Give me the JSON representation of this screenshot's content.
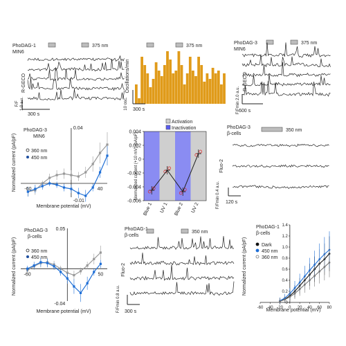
{
  "chart_data": [
    {
      "id": "a1",
      "type": "line",
      "label": "PhoDAG-1",
      "cells": "MIN6",
      "stim": "375 nm",
      "ylabel": "R-GECO",
      "scale_y": "F/Fmin 1.0 a.u.",
      "scale_x": "300 s",
      "traces": 5
    },
    {
      "id": "a2",
      "type": "bar",
      "stim": "375 nm",
      "ylabel": "Oscillations/min",
      "scale_y": "10 osc.",
      "scale_x": "300 s",
      "values": [
        0.35,
        0.1,
        0.85,
        0.7,
        0.55,
        0.3,
        0.45,
        0.75,
        0.6,
        0.5,
        0.7,
        0.95,
        0.8,
        0.55,
        0.6,
        0.95,
        0.7,
        0.35,
        0.55,
        0.85,
        0.6,
        0.5,
        0.85,
        0.7,
        0.4,
        0.55,
        0.45,
        0.65,
        0.55,
        0.6,
        0.35,
        0.55
      ]
    },
    {
      "id": "a3",
      "type": "line",
      "label": "PhoDAG-3",
      "cells": "MIN6",
      "stim": "375 nm",
      "ylabel": "R-GECO",
      "scale_y": "F/Fmin 2.0 a.u.",
      "scale_x": "600 s",
      "traces": 5
    },
    {
      "id": "b1",
      "type": "line",
      "label": "PhoDAG-3",
      "cells": "MIN6",
      "xlabel": "Membrane potential (mV)",
      "ylabel": "Normalized current (pA/pF)",
      "xlim": [
        -70,
        50
      ],
      "ylim": [
        -0.01,
        0.04
      ],
      "xticks": [
        "-60",
        "0",
        "40"
      ],
      "yticks": [
        "0.04",
        "-0.01"
      ],
      "legend": [
        "360 nm",
        "450 nm"
      ],
      "series": [
        {
          "name": "360 nm",
          "color": "#999999",
          "x": [
            -60,
            -50,
            -40,
            -30,
            -20,
            -10,
            0,
            10,
            20,
            30,
            40,
            50
          ],
          "y": [
            -0.006,
            -0.005,
            0.0,
            0.004,
            0.006,
            0.007,
            0.006,
            0.005,
            0.008,
            0.014,
            0.022,
            0.028
          ]
        },
        {
          "name": "450 nm",
          "color": "#1f6fd6",
          "x": [
            -60,
            -50,
            -40,
            -30,
            -20,
            -10,
            0,
            10,
            20,
            30,
            40,
            50
          ],
          "y": [
            -0.006,
            -0.004,
            -0.002,
            0.0,
            -0.001,
            -0.003,
            -0.004,
            -0.007,
            -0.009,
            -0.003,
            0.008,
            0.02
          ]
        }
      ]
    },
    {
      "id": "b2",
      "type": "line",
      "ylabel": "Normalized current (+10 mV) (pA/pF)",
      "ylim": [
        -0.006,
        0.004
      ],
      "yticks": [
        "0.004",
        "0.002",
        "0",
        "-0.002",
        "-0.004",
        "-0.006"
      ],
      "categories": [
        "Blue 1",
        "UV 1",
        "Blue 2",
        "UV 2"
      ],
      "legend": [
        "Activation",
        "Inactivation"
      ],
      "values": [
        -0.0045,
        -0.0016,
        -0.0047,
        0.0008
      ]
    },
    {
      "id": "b3",
      "type": "line",
      "label": "PhoDAG-3",
      "cells": "β-cells",
      "stim": "350 nm",
      "ylabel": "Fluo-2",
      "scale_y": "F/Fmin 0.4 a.u.",
      "scale_x": "120 s",
      "traces": 3
    },
    {
      "id": "c1",
      "type": "line",
      "label": "PhoDAG-3",
      "cells": "β-cells",
      "xlabel": "Membrane potential (mV)",
      "ylabel": "Normalized current (pA/pF)",
      "xlim": [
        -70,
        60
      ],
      "ylim": [
        -0.04,
        0.05
      ],
      "xticks": [
        "-60",
        "50"
      ],
      "yticks": [
        "0.05",
        "-0.04"
      ],
      "legend": [
        "360 nm",
        "450 nm"
      ],
      "series": [
        {
          "name": "360 nm",
          "color": "#999999",
          "x": [
            -60,
            -50,
            -40,
            -30,
            -20,
            -10,
            0,
            10,
            20,
            30,
            40,
            50
          ],
          "y": [
            -0.002,
            0.003,
            0.007,
            0.008,
            0.005,
            0.0,
            -0.005,
            -0.008,
            -0.003,
            0.004,
            0.012,
            0.02
          ]
        },
        {
          "name": "450 nm",
          "color": "#1f6fd6",
          "x": [
            -60,
            -50,
            -40,
            -30,
            -20,
            -10,
            0,
            10,
            20,
            30,
            40,
            50
          ],
          "y": [
            0.0,
            0.004,
            0.008,
            0.007,
            0.003,
            -0.004,
            -0.012,
            -0.022,
            -0.03,
            -0.018,
            -0.004,
            0.006
          ]
        }
      ]
    },
    {
      "id": "c2",
      "type": "line",
      "label": "PhoDAG-1",
      "cells": "β-cells",
      "stim": "350 nm",
      "ylabel": "Fluo-2",
      "scale_y": "F/Fmin 0.8 a.u.",
      "scale_x": "300 s",
      "traces": 4
    },
    {
      "id": "c3",
      "type": "line",
      "label": "PhoDAG-1",
      "cells": "β-cells",
      "xlabel": "Membrane potential (mV)",
      "ylabel": "Normalized current (pA/pF)",
      "xlim": [
        -60,
        80
      ],
      "ylim": [
        0,
        1.4
      ],
      "xticks": [
        "-60",
        "-40",
        "-20",
        "0",
        "20",
        "40",
        "60",
        "80"
      ],
      "yticks": [
        "0",
        "0.2",
        "0.4",
        "0.6",
        "0.8",
        "1.0",
        "1.2",
        "1.4"
      ],
      "legend": [
        "Dark",
        "450 nm",
        "360 nm"
      ],
      "series": [
        {
          "name": "Dark",
          "color": "#111111",
          "x": [
            -20,
            -10,
            0,
            10,
            20,
            30,
            40,
            50,
            60,
            70,
            80
          ],
          "y": [
            0.02,
            0.06,
            0.12,
            0.2,
            0.3,
            0.4,
            0.5,
            0.6,
            0.7,
            0.78,
            0.88
          ]
        },
        {
          "name": "450 nm",
          "color": "#1f6fd6",
          "x": [
            -20,
            -10,
            0,
            10,
            20,
            30,
            40,
            50,
            60,
            70,
            80
          ],
          "y": [
            0.03,
            0.08,
            0.16,
            0.26,
            0.36,
            0.47,
            0.58,
            0.68,
            0.78,
            0.87,
            0.95
          ]
        },
        {
          "name": "360 nm",
          "color": "#777777",
          "x": [
            -20,
            -10,
            0,
            10,
            20,
            30,
            40,
            50,
            60,
            70,
            80
          ],
          "y": [
            0.02,
            0.05,
            0.1,
            0.16,
            0.24,
            0.32,
            0.4,
            0.48,
            0.56,
            0.64,
            0.72
          ]
        }
      ]
    }
  ]
}
